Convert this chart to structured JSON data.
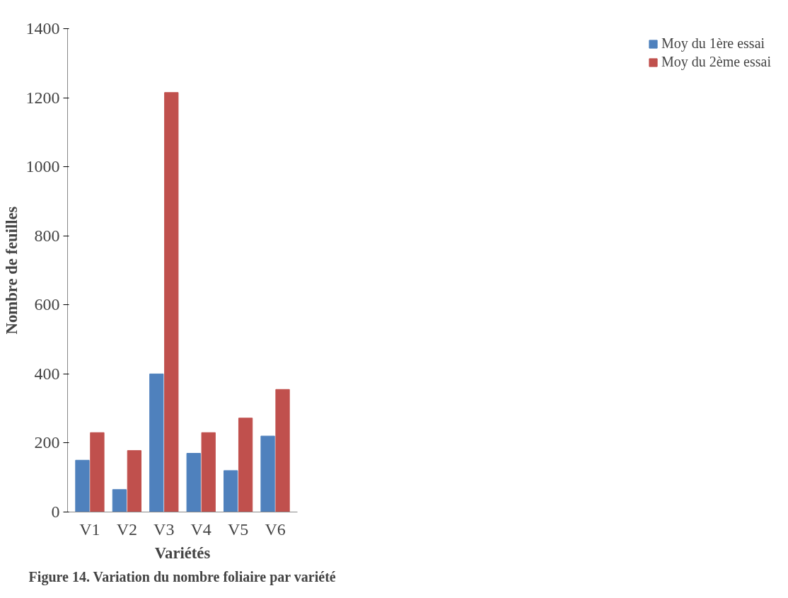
{
  "chart_data": {
    "type": "bar",
    "xlabel": "Variétés",
    "ylabel": "Nombre de feuilles",
    "categories": [
      "V1",
      "V2",
      "V3",
      "V4",
      "V5",
      "V6"
    ],
    "series": [
      {
        "name": "Moy du 1ère essai",
        "color": "#4f81bd",
        "values": [
          150,
          65,
          400,
          170,
          120,
          220
        ]
      },
      {
        "name": "Moy du 2ème essai",
        "color": "#c0504d",
        "values": [
          230,
          178,
          1215,
          230,
          272,
          355
        ]
      }
    ],
    "ylim": [
      0,
      1400
    ],
    "yticks": [
      0,
      200,
      400,
      600,
      800,
      1000,
      1200,
      1400
    ],
    "legend": "right",
    "grid": false,
    "annotations": [
      "Figure 14. Variation du nombre foliaire par variété"
    ]
  }
}
